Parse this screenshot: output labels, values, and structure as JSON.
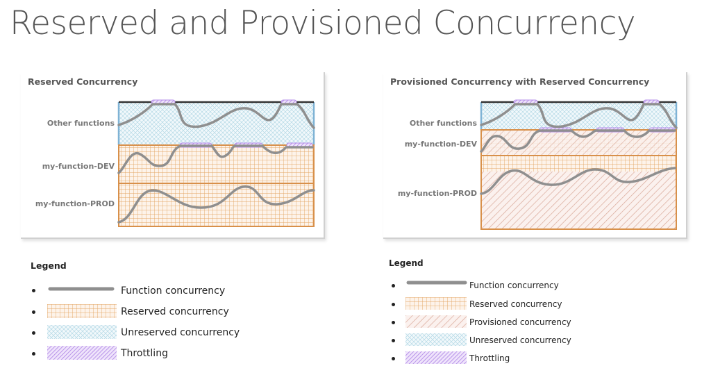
{
  "title": "Reserved and Provisioned Concurrency",
  "left_panel": {
    "title": "Reserved Concurrency",
    "rows": [
      "Other functions",
      "my-function-DEV",
      "my-function-PROD"
    ]
  },
  "right_panel": {
    "title": "Provisioned Concurrency with Reserved Concurrency",
    "rows": [
      "Other functions",
      "my-function-DEV",
      "my-function-PROD"
    ]
  },
  "left_legend": {
    "title": "Legend",
    "items": [
      {
        "label": "Function concurrency",
        "swatch": "line"
      },
      {
        "label": "Reserved concurrency",
        "swatch": "grid"
      },
      {
        "label": "Unreserved concurrency",
        "swatch": "cross"
      },
      {
        "label": "Throttling",
        "swatch": "throttle"
      }
    ]
  },
  "right_legend": {
    "title": "Legend",
    "items": [
      {
        "label": "Function concurrency",
        "swatch": "line"
      },
      {
        "label": "Reserved concurrency",
        "swatch": "grid"
      },
      {
        "label": "Provisioned concurrency",
        "swatch": "diag"
      },
      {
        "label": "Unreserved concurrency",
        "swatch": "cross"
      },
      {
        "label": "Throttling",
        "swatch": "throttle"
      }
    ]
  },
  "colors": {
    "reserved": "#e3a462",
    "reserved_border": "#d8904a",
    "unreserved": "#8cc6d8",
    "unreserved_border": "#7fb3d5",
    "provisioned": "#e0b0a4",
    "throttle": "#b38be8",
    "function_line": "#8f8f8f",
    "top_line": "#333333"
  }
}
